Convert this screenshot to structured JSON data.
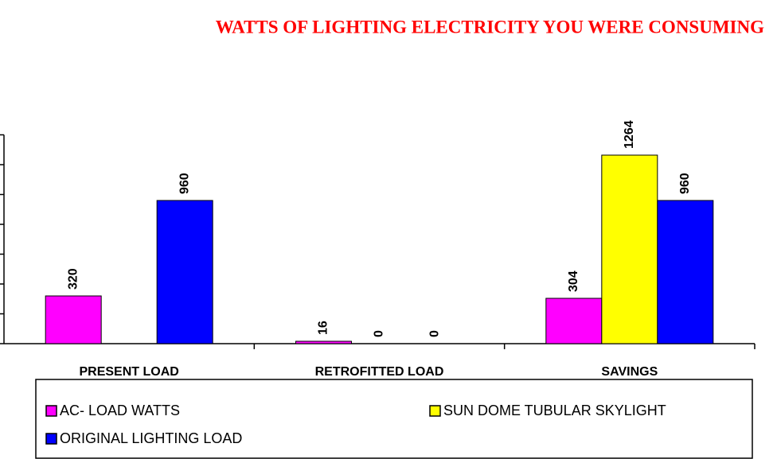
{
  "chart_data": {
    "type": "bar",
    "title": "WATTS OF LIGHTING ELECTRICITY YOU WERE CONSUMING",
    "categories": [
      "PRESENT LOAD",
      "RETROFITTED LOAD",
      "SAVINGS"
    ],
    "series": [
      {
        "name": "AC- LOAD WATTS",
        "color": "#ff00ff",
        "values": [
          320,
          16,
          304
        ]
      },
      {
        "name": "SUN DOME TUBULAR SKYLIGHT",
        "color": "#ffff00",
        "values": [
          null,
          0,
          1264
        ]
      },
      {
        "name": "ORIGINAL LIGHTING LOAD",
        "color": "#0000ff",
        "values": [
          960,
          0,
          960
        ]
      }
    ],
    "ylim": [
      0,
      1400
    ],
    "yticks": [
      0,
      200,
      400,
      600,
      800,
      1000,
      1200,
      1400
    ],
    "grid": false,
    "legend": "bottom"
  }
}
